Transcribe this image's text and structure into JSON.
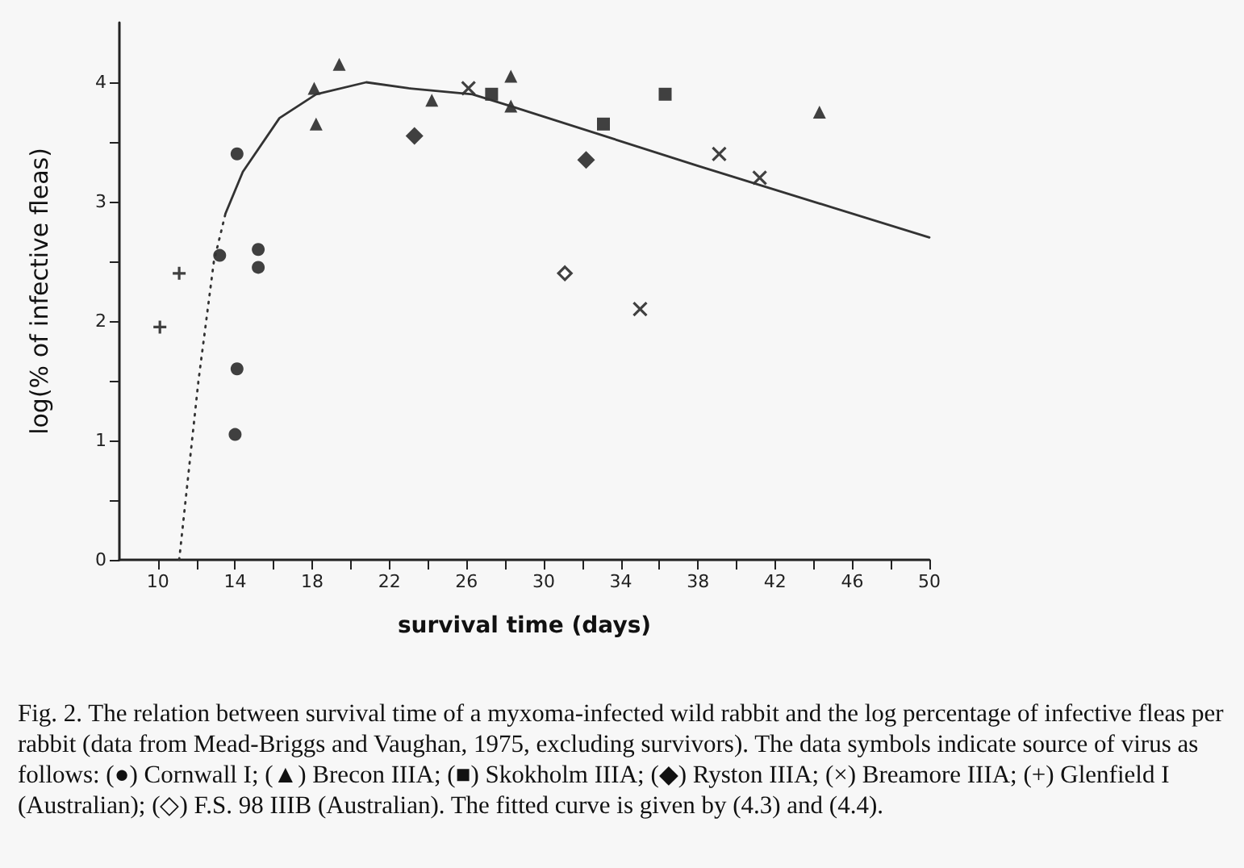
{
  "chart_data": {
    "type": "scatter",
    "xlabel": "survival time (days)",
    "ylabel": "log(% of infective fleas)",
    "xlim": [
      8,
      50
    ],
    "ylim": [
      0,
      4.5
    ],
    "xticks": [
      10,
      {
        "value": 12,
        "label": null
      },
      14,
      {
        "value": 16,
        "label": null
      },
      18,
      {
        "value": 20,
        "label": null
      },
      22,
      {
        "value": 24,
        "label": null
      },
      26,
      {
        "value": 28,
        "label": null
      },
      30,
      {
        "value": 32,
        "label": null
      },
      34,
      {
        "value": 36,
        "label": null
      },
      38,
      {
        "value": 40,
        "label": null
      },
      42,
      {
        "value": 44,
        "label": null
      },
      46,
      {
        "value": 48,
        "label": null
      },
      50
    ],
    "yticks": [
      0,
      {
        "value": 0.5,
        "label": null
      },
      1,
      {
        "value": 1.5,
        "label": null
      },
      2,
      {
        "value": 2.5,
        "label": null
      },
      3,
      {
        "value": 3.5,
        "label": null
      },
      4
    ],
    "grid": false,
    "series": [
      {
        "marker": "circle",
        "color": "#111111",
        "x": [
          14.1,
          13.2,
          15.2,
          15.2,
          14.1,
          14.0
        ],
        "values": [
          3.4,
          2.55,
          2.6,
          2.45,
          1.6,
          1.05
        ]
      },
      {
        "marker": "triangle",
        "color": "#111111",
        "x": [
          18.1,
          19.4,
          18.2,
          24.2,
          28.3,
          28.3,
          44.3
        ],
        "values": [
          3.95,
          4.15,
          3.65,
          3.85,
          4.05,
          3.8,
          3.75
        ]
      },
      {
        "marker": "square",
        "color": "#111111",
        "x": [
          27.3,
          33.1,
          36.3
        ],
        "values": [
          3.9,
          3.65,
          3.9
        ]
      },
      {
        "marker": "diamond",
        "color": "#111111",
        "x": [
          23.3,
          32.2
        ],
        "values": [
          3.55,
          3.35
        ]
      },
      {
        "marker": "cross",
        "color": "#111111",
        "x": [
          26.1,
          39.1,
          41.2,
          35.0
        ],
        "values": [
          3.95,
          3.4,
          3.2,
          2.1
        ]
      },
      {
        "marker": "plus",
        "color": "#111111",
        "x": [
          10.1,
          11.1
        ],
        "values": [
          1.95,
          2.4
        ]
      },
      {
        "marker": "diamond-open",
        "color": "#111111",
        "x": [
          31.1
        ],
        "values": [
          2.4
        ]
      },
      {
        "type": "line",
        "line_style": "dotted",
        "color": "#333333",
        "x": [
          11.1,
          12.1,
          12.9,
          13.5
        ],
        "values": [
          0,
          1.5,
          2.5,
          2.9
        ]
      },
      {
        "type": "line",
        "line_style": "solid",
        "color": "#333333",
        "x": [
          13.5,
          14.4,
          16.3,
          18.2,
          20.8,
          23,
          26.3,
          28.3,
          38,
          50
        ],
        "values": [
          2.9,
          3.25,
          3.7,
          3.9,
          4.0,
          3.95,
          3.9,
          3.8,
          3.3,
          2.7
        ]
      }
    ],
    "annotations": [
      "Fig. 2. The relation between survival time of a myxoma-infected wild rabbit and the log percentage of infective fleas per rabbit (data from Mead-Briggs and Vaughan, 1975, excluding survivors). The data symbols indicate source of virus as follows: (●) Cornwall I; (▲) Brecon IIIA; (■) Skokholm IIIA; (◆) Ryston IIIA; (×) Breamore IIIA; (+) Glenfield I (Australian); (◇) F.S. 98 IIIB (Australian). The fitted curve is given by (4.3) and (4.4)."
    ]
  }
}
